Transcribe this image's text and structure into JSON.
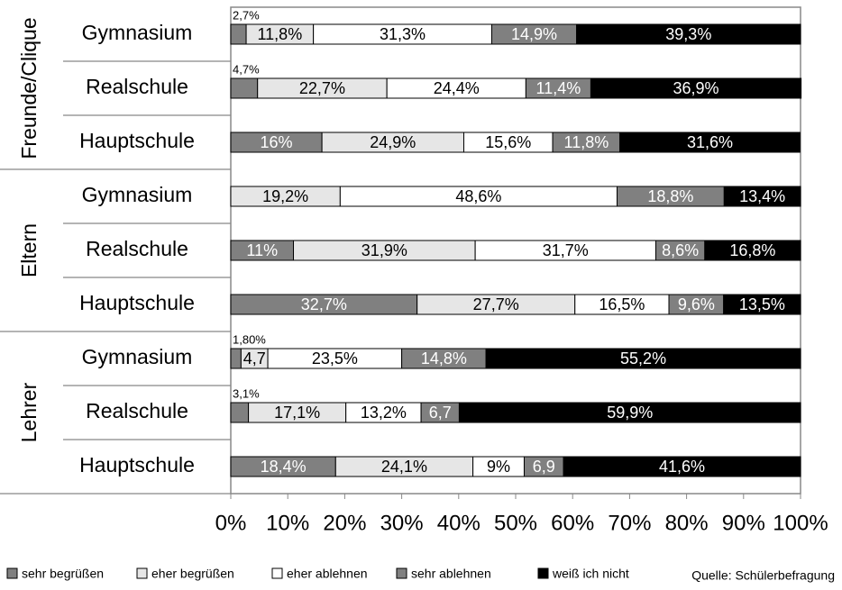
{
  "chart_data": {
    "type": "stacked-bar-horizontal",
    "groups": [
      "Freunde/Clique",
      "Eltern",
      "Lehrer"
    ],
    "categories": [
      "Gymnasium",
      "Realschule",
      "Hauptschule",
      "Gymnasium",
      "Realschule",
      "Hauptschule",
      "Gymnasium",
      "Realschule",
      "Hauptschule"
    ],
    "series": [
      {
        "name": "sehr begrüßen",
        "color": "#808080",
        "values": [
          2.7,
          4.7,
          16,
          0,
          11,
          32.7,
          1.8,
          3.1,
          18.4
        ],
        "value_labels": [
          "2,7%",
          "4,7%",
          "16%",
          null,
          "11%",
          "32,7%",
          "1,80%",
          "3,1%",
          "18,4%"
        ]
      },
      {
        "name": "eher begrüßen",
        "color": "#e6e6e6",
        "values": [
          11.8,
          22.7,
          24.9,
          19.2,
          31.9,
          27.7,
          4.7,
          17.1,
          24.1
        ],
        "value_labels": [
          "11,8%",
          "22,7%",
          "24,9%",
          "19,2%",
          "31,9%",
          "27,7%",
          "4,7",
          "17,1%",
          "24,1%"
        ]
      },
      {
        "name": "eher ablehnen",
        "color": "#ffffff",
        "values": [
          31.3,
          24.4,
          15.6,
          48.6,
          31.7,
          16.5,
          23.5,
          13.2,
          9
        ],
        "value_labels": [
          "31,3%",
          "24,4%",
          "15,6%",
          "48,6%",
          "31,7%",
          "16,5%",
          "23,5%",
          "13,2%",
          "9%"
        ]
      },
      {
        "name": "sehr ablehnen",
        "color": "#808080",
        "values": [
          14.9,
          11.4,
          11.8,
          18.8,
          8.6,
          9.6,
          14.8,
          6.7,
          6.9
        ],
        "value_labels": [
          "14,9%",
          "11,4%",
          "11,8%",
          "18,8%",
          "8,6%",
          "9,6%",
          "14,8%",
          "6,7",
          "6,9"
        ]
      },
      {
        "name": "weiß ich nicht",
        "color": "#000000",
        "values": [
          39.3,
          36.9,
          31.6,
          13.4,
          16.8,
          13.5,
          55.2,
          59.9,
          41.6
        ],
        "value_labels": [
          "39,3%",
          "36,9%",
          "31,6%",
          "13,4%",
          "16,8%",
          "13,5%",
          "55,2%",
          "59,9%",
          "41,6%"
        ]
      }
    ],
    "xlim": [
      0,
      100
    ],
    "xticks": [
      {
        "value": 0,
        "label": "0%"
      },
      {
        "value": 10,
        "label": "10%"
      },
      {
        "value": 20,
        "label": "20%"
      },
      {
        "value": 30,
        "label": "30%"
      },
      {
        "value": 40,
        "label": "40%"
      },
      {
        "value": 50,
        "label": "50%"
      },
      {
        "value": 60,
        "label": "60%"
      },
      {
        "value": 70,
        "label": "70%"
      },
      {
        "value": 80,
        "label": "80%"
      },
      {
        "value": 90,
        "label": "90%"
      },
      {
        "value": 100,
        "label": "100%"
      }
    ],
    "source": "Quelle: Schülerbefragung"
  }
}
